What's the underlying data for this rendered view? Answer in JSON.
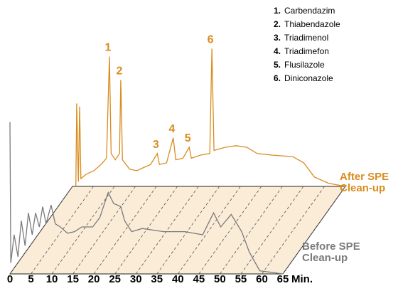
{
  "chart_data": {
    "type": "chromatogram",
    "xlabel": "Min.",
    "xlim": [
      0,
      65
    ],
    "xticks": [
      0,
      5,
      10,
      15,
      20,
      25,
      30,
      35,
      40,
      45,
      50,
      55,
      60,
      65
    ],
    "ylim": [
      0,
      100
    ],
    "series": [
      {
        "name": "After SPE Clean-up",
        "color": "#d98c1f",
        "x": [
          0.8,
          1.0,
          1.4,
          1.7,
          2.0,
          3.4,
          5.1,
          6.8,
          8.1,
          8.8,
          9.2,
          10.2,
          11.2,
          11.5,
          11.9,
          13.6,
          15.3,
          16.9,
          18.6,
          20.2,
          20.7,
          22.4,
          24.0,
          24.6,
          26.3,
          27.8,
          28.3,
          30.5,
          32.7,
          33.2,
          33.7,
          36.4,
          39.0,
          41.5,
          44.0,
          47.5,
          52.5,
          55.1,
          57.6,
          61.0,
          65.0
        ],
        "values": [
          0,
          53,
          3,
          51,
          5,
          8,
          10,
          14,
          18,
          83,
          21,
          17,
          21,
          68,
          17,
          11,
          10,
          12,
          14,
          21,
          14,
          15,
          31,
          17,
          18,
          25,
          18,
          20,
          21,
          88,
          23,
          25,
          26,
          25,
          21,
          20,
          19,
          15,
          6,
          2,
          0
        ]
      },
      {
        "name": "Before SPE Clean-up",
        "color": "#7a7a7a",
        "x": [
          0,
          0.2,
          1.0,
          1.9,
          2.7,
          3.6,
          4.4,
          5.3,
          6.1,
          7.0,
          7.8,
          8.6,
          9.8,
          10.8,
          12.0,
          13.7,
          15.4,
          17.1,
          19.7,
          21.4,
          23.4,
          24.7,
          26.4,
          27.3,
          29.0,
          31.5,
          36.6,
          41.7,
          45.9,
          48.5,
          50.2,
          52.7,
          55.2,
          57.0,
          59.5,
          65.0
        ],
        "values": [
          97,
          7,
          25,
          11,
          34,
          18,
          39,
          25,
          39,
          30,
          43,
          32,
          44,
          32,
          30,
          26,
          27,
          30,
          30,
          36,
          52,
          45,
          43,
          34,
          27,
          29,
          27,
          27,
          25,
          39,
          30,
          38,
          27,
          14,
          2,
          0
        ]
      }
    ],
    "peaks": [
      {
        "label": "1",
        "name": "Carbendazim",
        "x": 8.8,
        "y": 83
      },
      {
        "label": "2",
        "name": "Thiabendazole",
        "x": 11.5,
        "y": 68
      },
      {
        "label": "3",
        "name": "Triadimenol",
        "x": 20.2,
        "y": 21
      },
      {
        "label": "4",
        "name": "Triadimefon",
        "x": 24.0,
        "y": 31
      },
      {
        "label": "5",
        "name": "Flusilazole",
        "x": 27.8,
        "y": 25
      },
      {
        "label": "6",
        "name": "Diniconazole",
        "x": 33.2,
        "y": 88
      }
    ]
  }
}
